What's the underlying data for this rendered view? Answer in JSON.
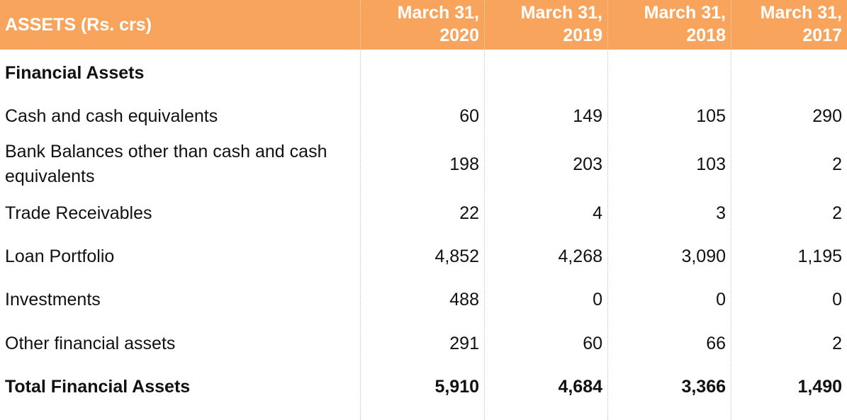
{
  "header": {
    "label": "ASSETS (Rs. crs)",
    "years": [
      {
        "line1": "March 31,",
        "line2": "2020"
      },
      {
        "line1": "March 31,",
        "line2": "2019"
      },
      {
        "line1": "March 31,",
        "line2": "2018"
      },
      {
        "line1": "March 31,",
        "line2": "2017"
      }
    ]
  },
  "rows": [
    {
      "label": "Financial Assets",
      "values": [
        "",
        "",
        "",
        ""
      ]
    },
    {
      "label": "Cash and cash equivalents",
      "values": [
        "60",
        "149",
        "105",
        "290"
      ]
    },
    {
      "label": "Bank Balances other than cash and cash equivalents",
      "values": [
        "198",
        "203",
        "103",
        "2"
      ]
    },
    {
      "label": "Trade Receivables",
      "values": [
        "22",
        "4",
        "3",
        "2"
      ]
    },
    {
      "label": "Loan Portfolio",
      "values": [
        "4,852",
        "4,268",
        "3,090",
        "1,195"
      ]
    },
    {
      "label": "Investments",
      "values": [
        "488",
        "0",
        "0",
        "0"
      ]
    },
    {
      "label": "Other financial assets",
      "values": [
        "291",
        "60",
        "66",
        "2"
      ]
    },
    {
      "label": "Total Financial Assets",
      "values": [
        "5,910",
        "4,684",
        "3,366",
        "1,490"
      ]
    }
  ]
}
